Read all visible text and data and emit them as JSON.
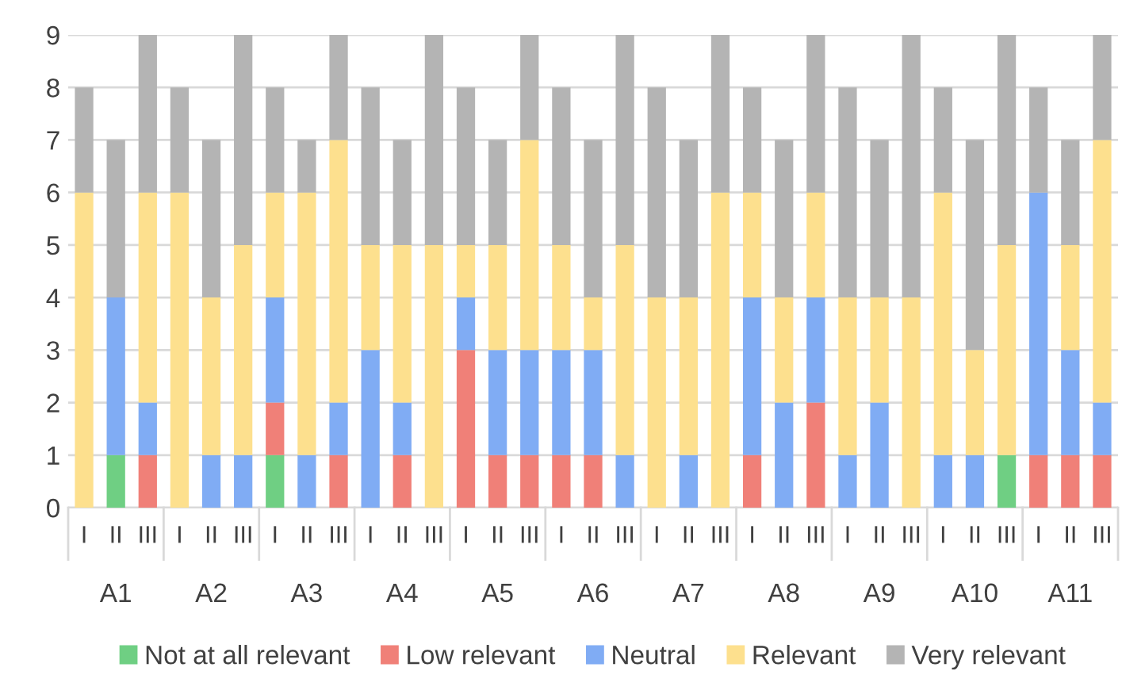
{
  "chart_data": {
    "type": "bar",
    "stacked": true,
    "categories": [
      "I",
      "II",
      "III",
      "I",
      "II",
      "III",
      "I",
      "II",
      "III",
      "I",
      "II",
      "III",
      "I",
      "II",
      "III",
      "I",
      "II",
      "III",
      "I",
      "II",
      "III",
      "I",
      "II",
      "III",
      "I",
      "II",
      "III",
      "I",
      "II",
      "III",
      "I",
      "II",
      "III"
    ],
    "annotations": [
      "A1",
      "A2",
      "A3",
      "A4",
      "A5",
      "A6",
      "A7",
      "A8",
      "A9",
      "A10",
      "A11"
    ],
    "series": [
      {
        "name": "Not at all relevant",
        "color": "#6fcf83",
        "values": [
          0,
          1,
          0,
          0,
          0,
          0,
          1,
          0,
          0,
          0,
          0,
          0,
          0,
          0,
          0,
          0,
          0,
          0,
          0,
          0,
          0,
          0,
          0,
          0,
          0,
          0,
          0,
          0,
          0,
          1,
          0,
          0,
          0
        ]
      },
      {
        "name": "Low relevant",
        "color": "#f08078",
        "values": [
          0,
          0,
          1,
          0,
          0,
          0,
          1,
          0,
          1,
          0,
          1,
          0,
          3,
          1,
          1,
          1,
          1,
          0,
          0,
          0,
          0,
          1,
          0,
          2,
          0,
          0,
          0,
          0,
          0,
          0,
          1,
          1,
          1
        ]
      },
      {
        "name": "Neutral",
        "color": "#80acf4",
        "values": [
          0,
          3,
          1,
          0,
          1,
          1,
          2,
          1,
          1,
          3,
          1,
          0,
          1,
          2,
          2,
          2,
          2,
          1,
          0,
          1,
          0,
          3,
          2,
          2,
          1,
          2,
          0,
          1,
          1,
          0,
          5,
          2,
          1
        ]
      },
      {
        "name": "Relevant",
        "color": "#fde08e",
        "values": [
          6,
          0,
          4,
          6,
          3,
          4,
          2,
          5,
          5,
          2,
          3,
          5,
          1,
          2,
          4,
          2,
          1,
          4,
          4,
          3,
          6,
          2,
          2,
          2,
          3,
          2,
          4,
          5,
          2,
          4,
          0,
          2,
          5
        ]
      },
      {
        "name": "Very relevant",
        "color": "#b4b4b4",
        "values": [
          2,
          3,
          3,
          2,
          3,
          4,
          2,
          1,
          2,
          3,
          2,
          4,
          3,
          2,
          2,
          3,
          3,
          4,
          4,
          3,
          3,
          2,
          3,
          3,
          4,
          3,
          5,
          2,
          4,
          4,
          2,
          2,
          2
        ]
      }
    ],
    "ylim": [
      0,
      9
    ],
    "yticks": [
      0,
      1,
      2,
      3,
      4,
      5,
      6,
      7,
      8,
      9
    ],
    "grid": "y",
    "legend": "bottom"
  }
}
